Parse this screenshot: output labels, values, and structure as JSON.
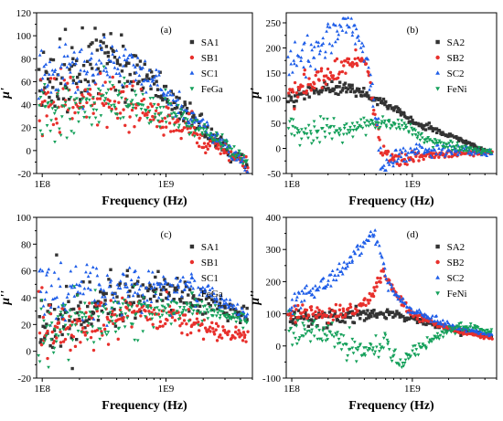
{
  "colors": {
    "black": "#333333",
    "red": "#e8302c",
    "blue": "#1f5ee8",
    "green": "#14a05a"
  },
  "chart_data": [
    {
      "type": "scatter",
      "panel_label": "(a)",
      "xlabel": "Frequency (Hz)",
      "ylabel": "μ'",
      "xscale": "log",
      "xlim": [
        90000000,
        5000000000
      ],
      "ylim": [
        -20,
        120
      ],
      "x_ticks": [
        100000000,
        1000000000
      ],
      "x_tick_labels": [
        "1E8",
        "1E9"
      ],
      "y_ticks": [
        -20,
        0,
        20,
        40,
        60,
        80,
        100,
        120
      ],
      "y_tick_labels": [
        "-20",
        "0",
        "20",
        "40",
        "60",
        "80",
        "100",
        "120"
      ],
      "legend_position": "top-right",
      "series": [
        {
          "name": "SA1",
          "marker": "square",
          "color": "#333333",
          "scatter": 14,
          "trend": [
            [
              100000000,
              58
            ],
            [
              200000000,
              68
            ],
            [
              300000000,
              78
            ],
            [
              500000000,
              72
            ],
            [
              800000000,
              58
            ],
            [
              1000000000,
              45
            ],
            [
              1500000000,
              30
            ],
            [
              2000000000,
              18
            ],
            [
              3000000000,
              2
            ],
            [
              4500000000,
              -14
            ]
          ]
        },
        {
          "name": "SB1",
          "marker": "circle",
          "color": "#e8302c",
          "scatter": 13,
          "trend": [
            [
              100000000,
              45
            ],
            [
              200000000,
              42
            ],
            [
              300000000,
              44
            ],
            [
              500000000,
              40
            ],
            [
              800000000,
              33
            ],
            [
              1000000000,
              28
            ],
            [
              1500000000,
              18
            ],
            [
              2000000000,
              10
            ],
            [
              3000000000,
              0
            ],
            [
              4500000000,
              -12
            ]
          ]
        },
        {
          "name": "SC1",
          "marker": "triangle-up",
          "color": "#1f5ee8",
          "scatter": 12,
          "trend": [
            [
              100000000,
              65
            ],
            [
              200000000,
              70
            ],
            [
              300000000,
              76
            ],
            [
              500000000,
              74
            ],
            [
              800000000,
              62
            ],
            [
              1000000000,
              50
            ],
            [
              1500000000,
              33
            ],
            [
              2000000000,
              20
            ],
            [
              3000000000,
              3
            ],
            [
              4500000000,
              -13
            ]
          ]
        },
        {
          "name": "FeGa",
          "marker": "triangle-down",
          "color": "#14a05a",
          "scatter": 11,
          "trend": [
            [
              100000000,
              35
            ],
            [
              200000000,
              40
            ],
            [
              300000000,
              42
            ],
            [
              500000000,
              42
            ],
            [
              800000000,
              38
            ],
            [
              1000000000,
              34
            ],
            [
              1500000000,
              25
            ],
            [
              2000000000,
              17
            ],
            [
              3000000000,
              5
            ],
            [
              4500000000,
              -9
            ]
          ]
        }
      ]
    },
    {
      "type": "scatter",
      "panel_label": "(b)",
      "xlabel": "Frequency (Hz)",
      "ylabel": "μ'",
      "xscale": "log",
      "xlim": [
        90000000,
        5000000000
      ],
      "ylim": [
        -50,
        270
      ],
      "x_ticks": [
        100000000,
        1000000000
      ],
      "x_tick_labels": [
        "1E8",
        "1E9"
      ],
      "y_ticks": [
        -50,
        0,
        50,
        100,
        150,
        200,
        250
      ],
      "y_tick_labels": [
        "-50",
        "0",
        "50",
        "100",
        "150",
        "200",
        "250"
      ],
      "legend_position": "top-right",
      "series": [
        {
          "name": "SA2",
          "marker": "square",
          "color": "#333333",
          "scatter": 6,
          "trend": [
            [
              100000000,
              100
            ],
            [
              150000000,
              112
            ],
            [
              200000000,
              120
            ],
            [
              300000000,
              120
            ],
            [
              400000000,
              108
            ],
            [
              600000000,
              88
            ],
            [
              800000000,
              70
            ],
            [
              1000000000,
              55
            ],
            [
              1500000000,
              38
            ],
            [
              2500000000,
              18
            ],
            [
              4500000000,
              -10
            ]
          ]
        },
        {
          "name": "SB2",
          "marker": "circle",
          "color": "#e8302c",
          "scatter": 10,
          "trend": [
            [
              100000000,
              115
            ],
            [
              150000000,
              130
            ],
            [
              200000000,
              145
            ],
            [
              300000000,
              165
            ],
            [
              380000000,
              178
            ],
            [
              430000000,
              150
            ],
            [
              480000000,
              70
            ],
            [
              550000000,
              0
            ],
            [
              700000000,
              -20
            ],
            [
              1000000000,
              -18
            ],
            [
              2000000000,
              -10
            ],
            [
              4500000000,
              -8
            ]
          ]
        },
        {
          "name": "SC2",
          "marker": "triangle-up",
          "color": "#1f5ee8",
          "scatter": 16,
          "trend": [
            [
              100000000,
              170
            ],
            [
              150000000,
              195
            ],
            [
              200000000,
              220
            ],
            [
              280000000,
              245
            ],
            [
              350000000,
              230
            ],
            [
              430000000,
              160
            ],
            [
              500000000,
              60
            ],
            [
              570000000,
              -40
            ],
            [
              650000000,
              -30
            ],
            [
              800000000,
              -10
            ],
            [
              1200000000,
              -5
            ],
            [
              2500000000,
              -5
            ],
            [
              4500000000,
              -8
            ]
          ]
        },
        {
          "name": "FeNi",
          "marker": "triangle-down",
          "color": "#14a05a",
          "scatter": 12,
          "trend": [
            [
              100000000,
              30
            ],
            [
              200000000,
              38
            ],
            [
              300000000,
              42
            ],
            [
              500000000,
              50
            ],
            [
              600000000,
              55
            ],
            [
              800000000,
              45
            ],
            [
              1000000000,
              30
            ],
            [
              1500000000,
              15
            ],
            [
              2500000000,
              2
            ],
            [
              4500000000,
              -8
            ]
          ]
        }
      ]
    },
    {
      "type": "scatter",
      "panel_label": "(c)",
      "xlabel": "Frequency (Hz)",
      "ylabel": "μ''",
      "xscale": "log",
      "xlim": [
        90000000,
        5000000000
      ],
      "ylim": [
        -20,
        100
      ],
      "x_ticks": [
        100000000,
        1000000000
      ],
      "x_tick_labels": [
        "1E8",
        "1E9"
      ],
      "y_ticks": [
        -20,
        0,
        20,
        40,
        60,
        80,
        100
      ],
      "y_tick_labels": [
        "-20",
        "0",
        "20",
        "40",
        "60",
        "80",
        "100"
      ],
      "legend_position": "top-right",
      "series": [
        {
          "name": "SA1",
          "marker": "square",
          "color": "#333333",
          "scatter": 12,
          "trend": [
            [
              100000000,
              20
            ],
            [
              200000000,
              28
            ],
            [
              300000000,
              34
            ],
            [
              500000000,
              40
            ],
            [
              800000000,
              44
            ],
            [
              1000000000,
              44
            ],
            [
              1500000000,
              42
            ],
            [
              2500000000,
              36
            ],
            [
              4500000000,
              25
            ]
          ]
        },
        {
          "name": "SB1",
          "marker": "circle",
          "color": "#e8302c",
          "scatter": 10,
          "trend": [
            [
              100000000,
              15
            ],
            [
              200000000,
              20
            ],
            [
              300000000,
              25
            ],
            [
              500000000,
              28
            ],
            [
              800000000,
              28
            ],
            [
              1000000000,
              26
            ],
            [
              1500000000,
              22
            ],
            [
              2500000000,
              16
            ],
            [
              4500000000,
              10
            ]
          ]
        },
        {
          "name": "SC1",
          "marker": "triangle-up",
          "color": "#1f5ee8",
          "scatter": 12,
          "trend": [
            [
              100000000,
              45
            ],
            [
              200000000,
              46
            ],
            [
              300000000,
              46
            ],
            [
              500000000,
              47
            ],
            [
              800000000,
              48
            ],
            [
              1000000000,
              49
            ],
            [
              1500000000,
              48
            ],
            [
              2500000000,
              42
            ],
            [
              4500000000,
              25
            ]
          ]
        },
        {
          "name": "FeGa",
          "marker": "triangle-down",
          "color": "#14a05a",
          "scatter": 10,
          "trend": [
            [
              100000000,
              15
            ],
            [
              200000000,
              20
            ],
            [
              300000000,
              24
            ],
            [
              500000000,
              27
            ],
            [
              800000000,
              30
            ],
            [
              1000000000,
              31
            ],
            [
              1500000000,
              31
            ],
            [
              2500000000,
              29
            ],
            [
              4500000000,
              22
            ]
          ]
        }
      ]
    },
    {
      "type": "scatter",
      "panel_label": "(d)",
      "xlabel": "Frequency (Hz)",
      "ylabel": "μ''",
      "xscale": "log",
      "xlim": [
        90000000,
        5000000000
      ],
      "ylim": [
        -100,
        400
      ],
      "x_ticks": [
        100000000,
        1000000000
      ],
      "x_tick_labels": [
        "1E8",
        "1E9"
      ],
      "y_ticks": [
        -100,
        0,
        100,
        200,
        300,
        400
      ],
      "y_tick_labels": [
        "-100",
        "0",
        "100",
        "200",
        "300",
        "400"
      ],
      "legend_position": "top-right",
      "series": [
        {
          "name": "SA2",
          "marker": "square",
          "color": "#333333",
          "scatter": 12,
          "trend": [
            [
              100000000,
              80
            ],
            [
              200000000,
              90
            ],
            [
              300000000,
              95
            ],
            [
              500000000,
              100
            ],
            [
              700000000,
              98
            ],
            [
              1000000000,
              85
            ],
            [
              1500000000,
              65
            ],
            [
              2500000000,
              45
            ],
            [
              4500000000,
              30
            ]
          ]
        },
        {
          "name": "SB2",
          "marker": "circle",
          "color": "#e8302c",
          "scatter": 12,
          "trend": [
            [
              100000000,
              100
            ],
            [
              200000000,
              100
            ],
            [
              300000000,
              105
            ],
            [
              400000000,
              130
            ],
            [
              500000000,
              180
            ],
            [
              580000000,
              220
            ],
            [
              650000000,
              200
            ],
            [
              800000000,
              140
            ],
            [
              1000000000,
              100
            ],
            [
              1500000000,
              70
            ],
            [
              2500000000,
              45
            ],
            [
              4500000000,
              25
            ]
          ]
        },
        {
          "name": "SC2",
          "marker": "triangle-up",
          "color": "#1f5ee8",
          "scatter": 14,
          "trend": [
            [
              100000000,
              130
            ],
            [
              150000000,
              170
            ],
            [
              200000000,
              200
            ],
            [
              300000000,
              260
            ],
            [
              400000000,
              320
            ],
            [
              470000000,
              360
            ],
            [
              520000000,
              320
            ],
            [
              600000000,
              220
            ],
            [
              700000000,
              160
            ],
            [
              1000000000,
              110
            ],
            [
              1500000000,
              80
            ],
            [
              2500000000,
              55
            ],
            [
              4500000000,
              35
            ]
          ]
        },
        {
          "name": "FeNi",
          "marker": "triangle-down",
          "color": "#14a05a",
          "scatter": 20,
          "trend": [
            [
              100000000,
              60
            ],
            [
              150000000,
              45
            ],
            [
              200000000,
              30
            ],
            [
              300000000,
              0
            ],
            [
              400000000,
              -20
            ],
            [
              500000000,
              5
            ],
            [
              600000000,
              20
            ],
            [
              700000000,
              -40
            ],
            [
              800000000,
              -50
            ],
            [
              1000000000,
              -20
            ],
            [
              1500000000,
              20
            ],
            [
              2000000000,
              50
            ],
            [
              2500000000,
              60
            ],
            [
              3500000000,
              55
            ],
            [
              4500000000,
              45
            ]
          ]
        }
      ]
    }
  ]
}
